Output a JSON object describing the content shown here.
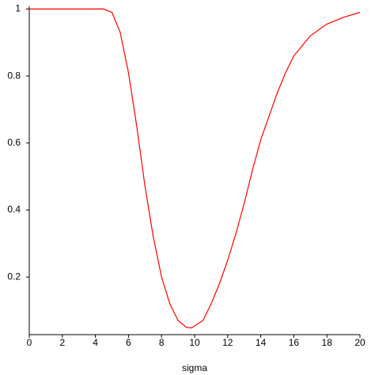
{
  "chart_data": {
    "type": "line",
    "x_label": "sigma",
    "x": [
      0,
      1,
      2,
      3,
      4,
      4.5,
      5,
      5.5,
      6,
      6.5,
      7,
      7.5,
      8,
      8.5,
      9,
      9.5,
      9.8,
      10,
      10.5,
      11,
      11.5,
      12,
      12.5,
      13,
      13.5,
      14,
      14.5,
      15,
      15.5,
      16,
      17,
      18,
      19,
      20
    ],
    "series": [
      {
        "color": "#ff0000",
        "values": [
          1,
          1,
          1,
          1,
          1,
          1,
          0.99,
          0.93,
          0.81,
          0.65,
          0.47,
          0.32,
          0.2,
          0.12,
          0.07,
          0.05,
          0.048,
          0.054,
          0.07,
          0.12,
          0.18,
          0.25,
          0.33,
          0.42,
          0.52,
          0.61,
          0.68,
          0.75,
          0.81,
          0.86,
          0.92,
          0.955,
          0.975,
          0.99
        ]
      }
    ],
    "xlim": [
      0,
      20
    ],
    "ylim": [
      0.028,
      1.008
    ],
    "xticks": [
      0,
      2,
      4,
      6,
      8,
      10,
      12,
      14,
      16,
      18,
      20
    ],
    "yticks": [
      0.2,
      0.4,
      0.6,
      0.8,
      1
    ]
  }
}
